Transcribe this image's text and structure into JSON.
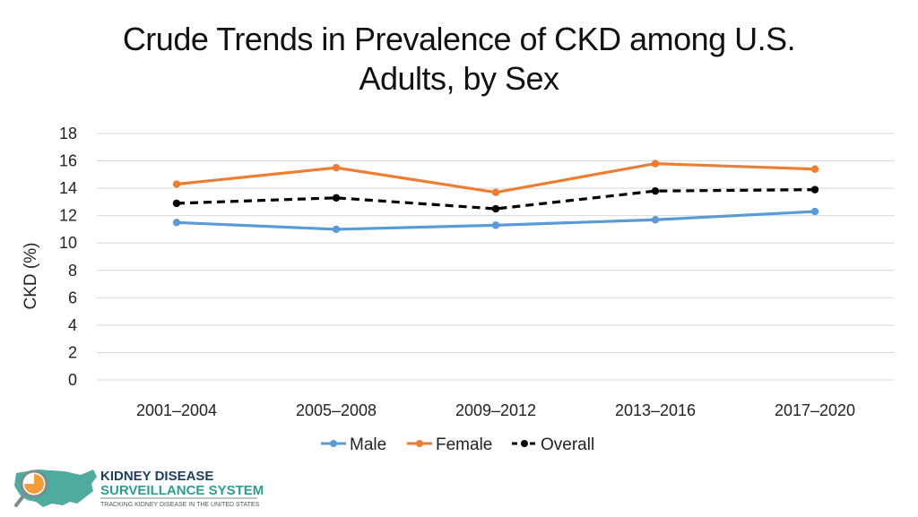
{
  "chart_data": {
    "type": "line",
    "title": [
      "Crude Trends in Prevalence of CKD among U.S.",
      "Adults, by Sex"
    ],
    "xlabel": "",
    "ylabel": "CKD (%)",
    "categories": [
      "2001–2004",
      "2005–2008",
      "2009–2012",
      "2013–2016",
      "2017–2020"
    ],
    "ylim": [
      0,
      18
    ],
    "yticks": [
      0,
      2,
      4,
      6,
      8,
      10,
      12,
      14,
      16,
      18
    ],
    "grid": true,
    "legend_position": "bottom",
    "series": [
      {
        "name": "Male",
        "values": [
          11.5,
          11.0,
          11.3,
          11.7,
          12.3
        ],
        "color": "#5B9BD5",
        "style": "solid"
      },
      {
        "name": "Female",
        "values": [
          14.3,
          15.5,
          13.7,
          15.8,
          15.4
        ],
        "color": "#ED7D31",
        "style": "solid"
      },
      {
        "name": "Overall",
        "values": [
          12.9,
          13.3,
          12.5,
          13.8,
          13.9
        ],
        "color": "#000000",
        "style": "dashed"
      }
    ]
  },
  "logo": {
    "line1": "KIDNEY DISEASE",
    "line2": "SURVEILLANCE SYSTEM",
    "tagline": "TRACKING KIDNEY DISEASE IN THE UNITED STATES",
    "colors": {
      "teal": "#2E9C8F",
      "orange": "#F39C3C",
      "gray": "#7F8C8D",
      "navy": "#1F3F5B"
    }
  }
}
